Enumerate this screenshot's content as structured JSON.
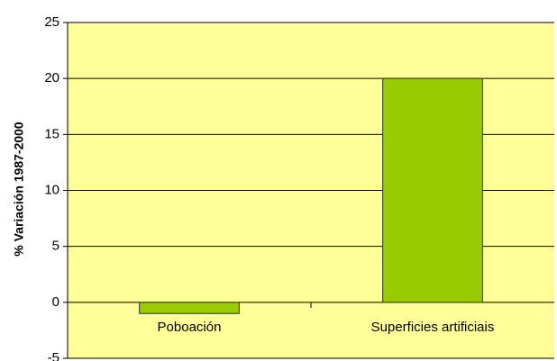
{
  "chart_data": {
    "type": "bar",
    "ylabel": "% Variación 1987-2000",
    "categories": [
      "Poboación",
      "Superficies artificiais"
    ],
    "values": [
      -1,
      20
    ],
    "color": "#99cc00",
    "background": "#ffff99",
    "ylim": [
      -5,
      25
    ],
    "yticks": [
      -5,
      0,
      5,
      10,
      15,
      20,
      25
    ],
    "grid": true
  }
}
